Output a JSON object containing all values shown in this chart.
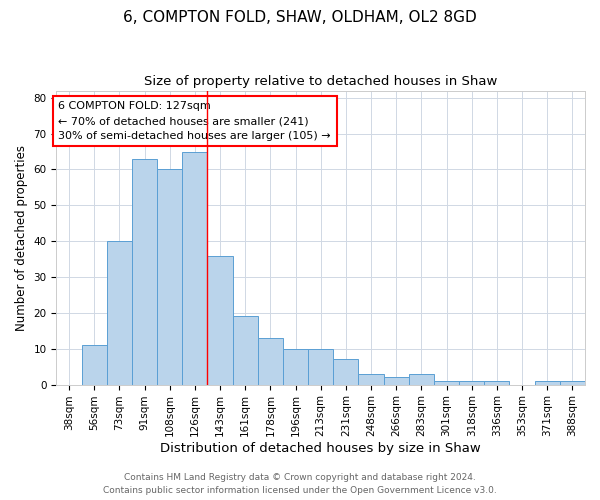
{
  "title1": "6, COMPTON FOLD, SHAW, OLDHAM, OL2 8GD",
  "title2": "Size of property relative to detached houses in Shaw",
  "xlabel": "Distribution of detached houses by size in Shaw",
  "ylabel": "Number of detached properties",
  "categories": [
    "38sqm",
    "56sqm",
    "73sqm",
    "91sqm",
    "108sqm",
    "126sqm",
    "143sqm",
    "161sqm",
    "178sqm",
    "196sqm",
    "213sqm",
    "231sqm",
    "248sqm",
    "266sqm",
    "283sqm",
    "301sqm",
    "318sqm",
    "336sqm",
    "353sqm",
    "371sqm",
    "388sqm"
  ],
  "values": [
    0,
    11,
    40,
    63,
    60,
    65,
    36,
    19,
    13,
    10,
    10,
    7,
    3,
    2,
    3,
    1,
    1,
    1,
    0,
    1,
    1
  ],
  "bar_color": "#bad4eb",
  "bar_edge_color": "#5a9fd4",
  "red_line_index": 5,
  "ylim": [
    0,
    82
  ],
  "yticks": [
    0,
    10,
    20,
    30,
    40,
    50,
    60,
    70,
    80
  ],
  "annotation_title": "6 COMPTON FOLD: 127sqm",
  "annotation_line1": "← 70% of detached houses are smaller (241)",
  "annotation_line2": "30% of semi-detached houses are larger (105) →",
  "footer1": "Contains HM Land Registry data © Crown copyright and database right 2024.",
  "footer2": "Contains public sector information licensed under the Open Government Licence v3.0.",
  "title1_fontsize": 11,
  "title2_fontsize": 9.5,
  "xlabel_fontsize": 9.5,
  "ylabel_fontsize": 8.5,
  "tick_fontsize": 7.5,
  "annotation_fontsize": 8,
  "footer_fontsize": 6.5,
  "grid_color": "#d0d8e4"
}
